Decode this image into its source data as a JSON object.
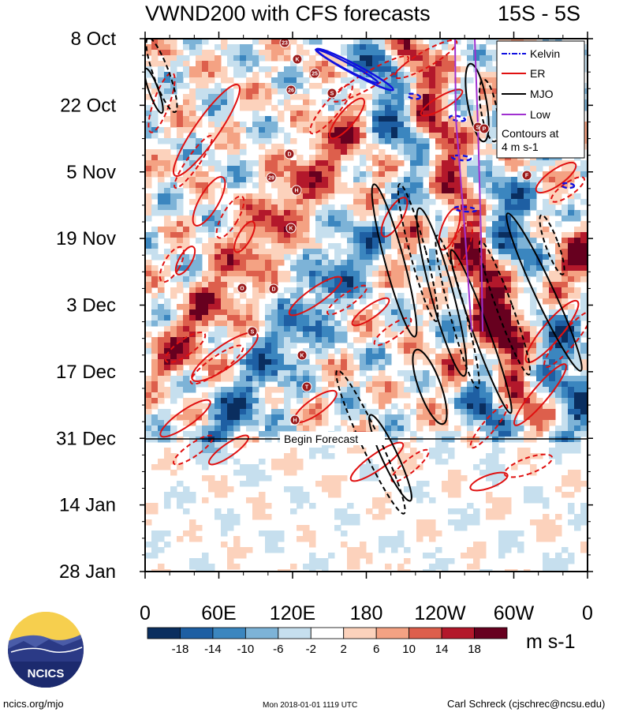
{
  "chart_data": {
    "type": "heatmap",
    "title": "VWND200 with CFS forecasts",
    "region_label": "15S - 5S",
    "y_tick_labels": [
      "8 Oct",
      "22 Oct",
      "5 Nov",
      "19 Nov",
      "3 Dec",
      "17 Dec",
      "31 Dec",
      "14 Jan",
      "28 Jan"
    ],
    "x_tick_labels": [
      "0",
      "60E",
      "120E",
      "180",
      "120W",
      "60W",
      "0"
    ],
    "colorbar": {
      "tick_labels": [
        "-18",
        "-14",
        "-10",
        "-6",
        "-2",
        "2",
        "6",
        "10",
        "14",
        "18"
      ],
      "colors": [
        "#0a2e5f",
        "#1e5fa3",
        "#3b86bf",
        "#7db3d7",
        "#c6dfee",
        "#ffffff",
        "#fcd2bc",
        "#f4a283",
        "#dd5f4c",
        "#b3182b",
        "#67001f"
      ],
      "unit": "m s-1"
    },
    "legend": {
      "items": [
        {
          "label": "Kelvin",
          "color": "#1010e0"
        },
        {
          "label": "ER",
          "color": "#e01010"
        },
        {
          "label": "MJO",
          "color": "#000000"
        },
        {
          "label": "Low",
          "color": "#a030d0"
        }
      ],
      "note_line1": "Contours at",
      "note_line2": "4 m s-1"
    },
    "forecast_label": "Begin Forecast",
    "storm_labels": [
      "23",
      "K",
      "25",
      "26",
      "S",
      "D",
      "29",
      "H",
      "K",
      "O",
      "D",
      "S",
      "K",
      "T",
      "H",
      "S",
      "P",
      "F"
    ]
  },
  "footer": {
    "site": "ncics.org/mjo",
    "timestamp": "Mon 2018-01-01 1119 UTC",
    "author": "Carl Schreck (cjschrec@ncsu.edu)"
  },
  "logo": {
    "text": "NCICS"
  }
}
